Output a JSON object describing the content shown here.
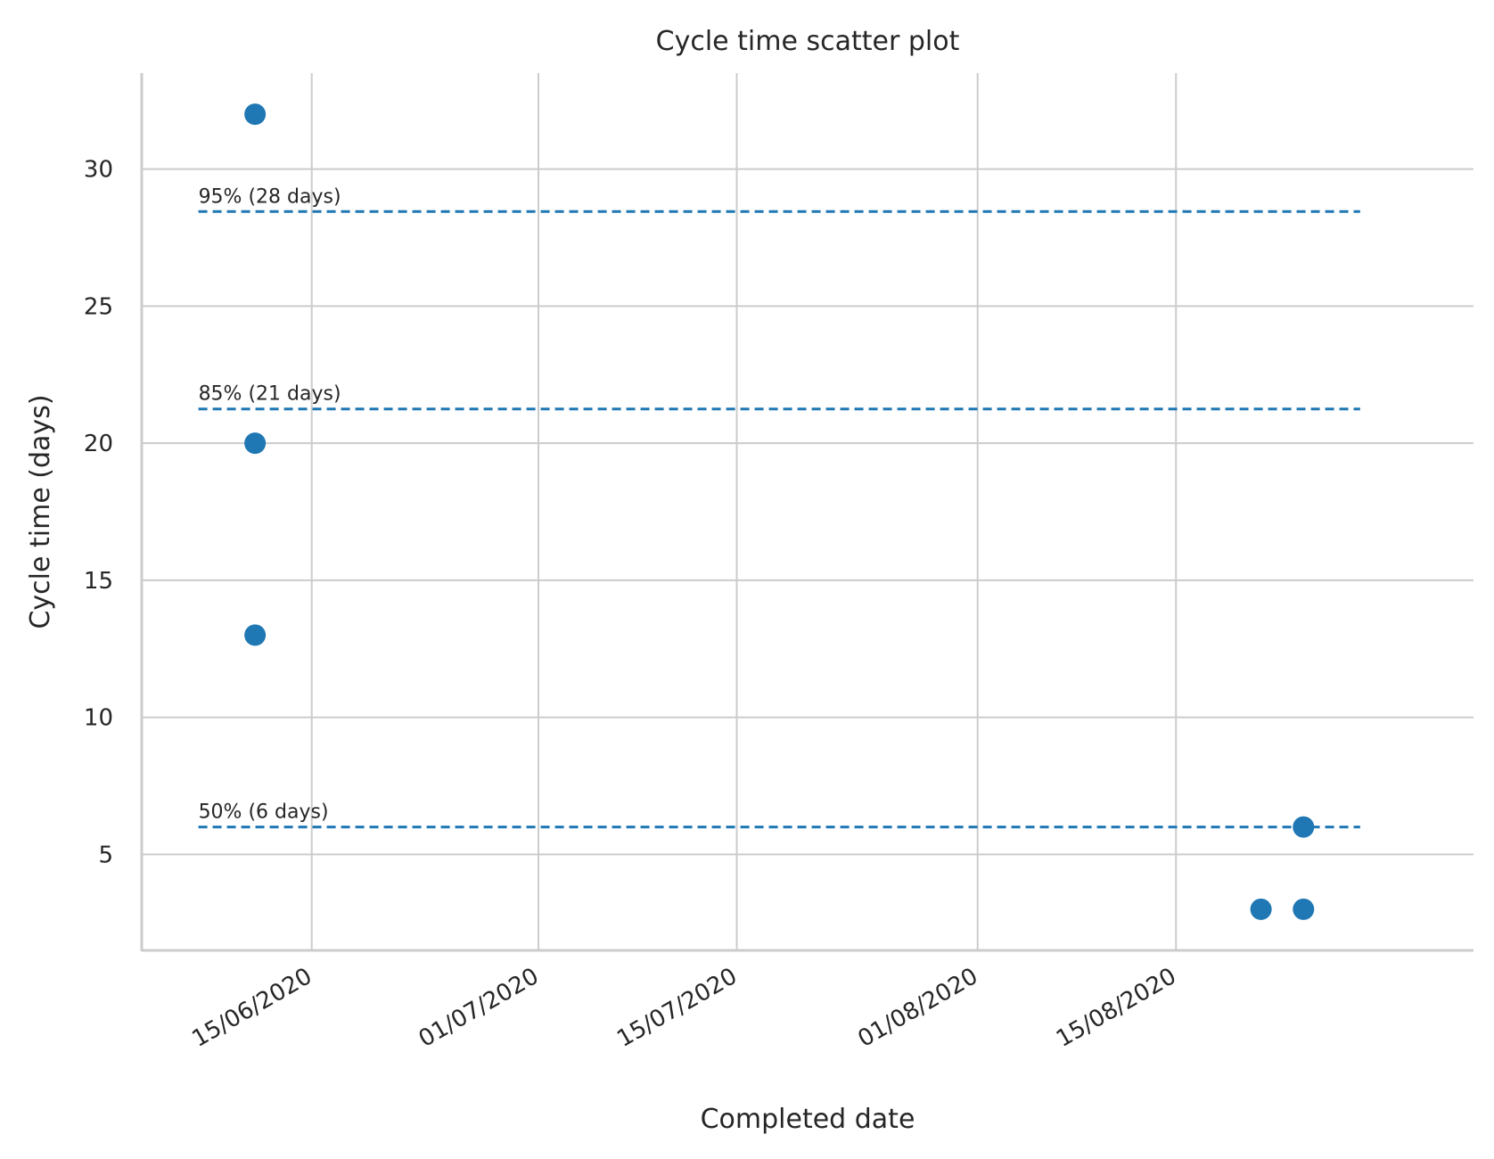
{
  "chart_data": {
    "type": "scatter",
    "title": "Cycle time scatter plot",
    "xlabel": "Completed date",
    "ylabel": "Cycle time (days)",
    "grid": true,
    "colors": {
      "point": "#1f77b4",
      "grid": "#cccccc",
      "text": "#262626"
    },
    "xlim": [
      "2020-06-03",
      "2020-09-05"
    ],
    "ylim": [
      1.5,
      33.5
    ],
    "x_ticks": [
      {
        "date": "2020-06-15",
        "label": "15/06/2020"
      },
      {
        "date": "2020-07-01",
        "label": "01/07/2020"
      },
      {
        "date": "2020-07-15",
        "label": "15/07/2020"
      },
      {
        "date": "2020-08-01",
        "label": "01/08/2020"
      },
      {
        "date": "2020-08-15",
        "label": "15/08/2020"
      }
    ],
    "y_ticks": [
      5,
      10,
      15,
      20,
      25,
      30
    ],
    "points": [
      {
        "date": "2020-06-11",
        "cycle_time": 32
      },
      {
        "date": "2020-06-11",
        "cycle_time": 20
      },
      {
        "date": "2020-06-11",
        "cycle_time": 13
      },
      {
        "date": "2020-08-21",
        "cycle_time": 3
      },
      {
        "date": "2020-08-24",
        "cycle_time": 6
      },
      {
        "date": "2020-08-24",
        "cycle_time": 3
      }
    ],
    "percentiles": [
      {
        "value": 28.45,
        "label": "95% (28 days)"
      },
      {
        "value": 21.25,
        "label": "85% (21 days)"
      },
      {
        "value": 6.0,
        "label": "50% (6 days)"
      }
    ],
    "percentile_range": [
      "2020-06-07",
      "2020-08-28"
    ]
  }
}
